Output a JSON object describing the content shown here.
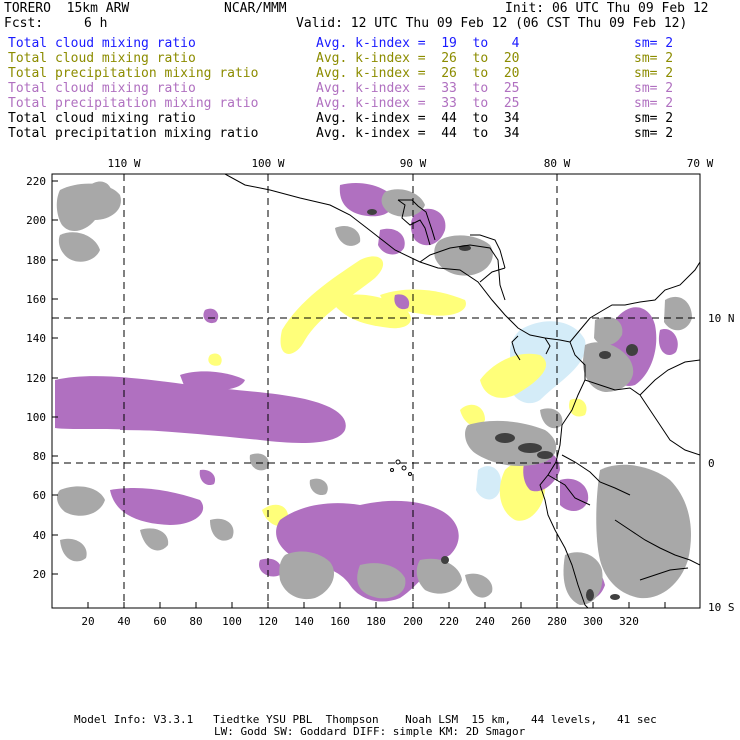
{
  "header": {
    "model_name": "TORERO  15km ARW",
    "org": "NCAR/MMM",
    "init": "Init: 06 UTC Thu 09 Feb 12",
    "fcst_label": "Fcst:",
    "fcst_value": "6 h",
    "valid": "Valid: 12 UTC Thu 09 Feb 12 (06 CST Thu 09 Feb 12)"
  },
  "legend": [
    {
      "field": "Total cloud mixing ratio",
      "index": "Avg. k-index =  19  to   4",
      "sm": "sm= 2",
      "color": "#1a1aff"
    },
    {
      "field": "Total cloud mixing ratio",
      "index": "Avg. k-index =  26  to  20",
      "sm": "sm= 2",
      "color": "#8c8c00"
    },
    {
      "field": "Total precipitation mixing ratio",
      "index": "Avg. k-index =  26  to  20",
      "sm": "sm= 2",
      "color": "#8c8c00"
    },
    {
      "field": "Total cloud mixing ratio",
      "index": "Avg. k-index =  33  to  25",
      "sm": "sm= 2",
      "color": "#b070c0"
    },
    {
      "field": "Total precipitation mixing ratio",
      "index": "Avg. k-index =  33  to  25",
      "sm": "sm= 2",
      "color": "#b070c0"
    },
    {
      "field": "Total cloud mixing ratio",
      "index": "Avg. k-index =  44  to  34",
      "sm": "sm= 2",
      "color": "#000000"
    },
    {
      "field": "Total precipitation mixing ratio",
      "index": "Avg. k-index =  44  to  34",
      "sm": "sm= 2",
      "color": "#000000"
    }
  ],
  "axes": {
    "lon_labels": [
      "110 W",
      "100 W",
      "90 W",
      "80 W",
      "70 W"
    ],
    "lat_labels": [
      "10 N",
      "0",
      "10 S"
    ],
    "y_ticks": [
      "220",
      "200",
      "180",
      "160",
      "140",
      "120",
      "100",
      "80",
      "60",
      "40",
      "20"
    ],
    "x_ticks": [
      "20",
      "40",
      "60",
      "80",
      "100",
      "120",
      "140",
      "160",
      "180",
      "200",
      "220",
      "240",
      "260",
      "280",
      "300",
      "320"
    ]
  },
  "colors": {
    "light_blue": "#d4ecf8",
    "yellow": "#ffff7a",
    "purple": "#b070c0",
    "gray": "#a8a8a8",
    "dark": "#404040"
  },
  "footer": {
    "line1": "Model Info: V3.3.1   Tiedtke YSU PBL  Thompson    Noah LSM  15 km,   44 levels,   41 sec",
    "line2": "LW: Godd SW: Goddard DIFF: simple KM: 2D Smagor"
  }
}
